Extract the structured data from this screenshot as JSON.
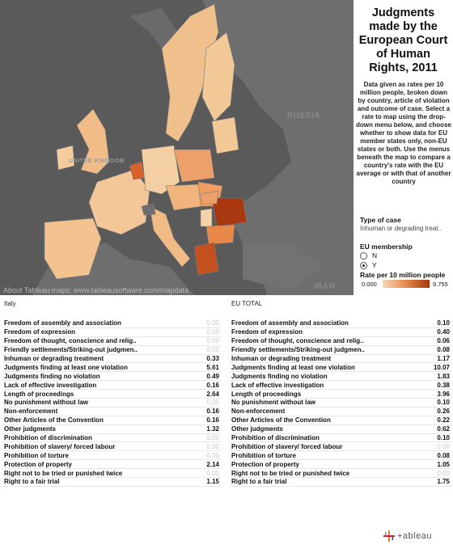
{
  "panel": {
    "title": "Judgments made by the European Court of Human Rights, 2011",
    "description": "Data given as rates per 10 million people, broken down by country, article of violation and outcome of case. Select a rate to map using the drop-down menu below, and choose whether to show data for EU member states only, non-EU states or both. Use the menus beneath the map to compare a country's rate with the EU average or with that of another country",
    "type_label": "Type of case",
    "type_value": "Inhuman or degrading treat..",
    "eu_label": "EU membership",
    "eu_options": [
      "N",
      "Y"
    ],
    "eu_selected": "Y",
    "legend_title": "Rate per 10 million people",
    "legend_min": "0.000",
    "legend_max": "9.755",
    "legend_colors": [
      "#fbd7b4",
      "#a9370f"
    ]
  },
  "map": {
    "labels": [
      "RUSSIA",
      "IRAN",
      "UNITED KINGDOM"
    ],
    "credit": "About Tableau maps: www.tableausoftware.com/mapdata"
  },
  "tables": {
    "left_header": "Italy",
    "right_header": "EU TOTAL",
    "rows": [
      "Freedom of assembly and association",
      "Freedom of expression",
      "Freedom of thought, conscience  and relig..",
      "Friendly settlements/Striking-out judgmen..",
      "Inhuman or degrading  treatment",
      "Judgments finding at least one violation",
      "Judgments finding no violation",
      "Lack of effective  investigation",
      "Length of proceedings",
      "No punishment without law",
      "Non-enforcement",
      "Other Articles of the Convention",
      "Other judgments",
      "Prohibition of discrimination",
      "Prohibition of slavery/ forced labour",
      "Prohibition of torture",
      "Protection of property",
      "Right not to be tried or punished twice",
      "Right to a fair trial"
    ],
    "left_values": [
      "0.00",
      "0.00",
      "0.00",
      "0.00",
      "0.33",
      "5.61",
      "0.49",
      "0.16",
      "2.64",
      "0.00",
      "0.16",
      "0.16",
      "1.32",
      "0.00",
      "0.00",
      "0.00",
      "2.14",
      "0.00",
      "1.15"
    ],
    "right_values": [
      "0.10",
      "0.40",
      "0.06",
      "0.08",
      "1.17",
      "10.07",
      "1.83",
      "0.38",
      "3.96",
      "0.10",
      "0.26",
      "0.22",
      "0.62",
      "0.10",
      "0.00",
      "0.08",
      "1.05",
      "0.00",
      "1.75"
    ]
  },
  "footer": {
    "logo": "+ableau"
  }
}
